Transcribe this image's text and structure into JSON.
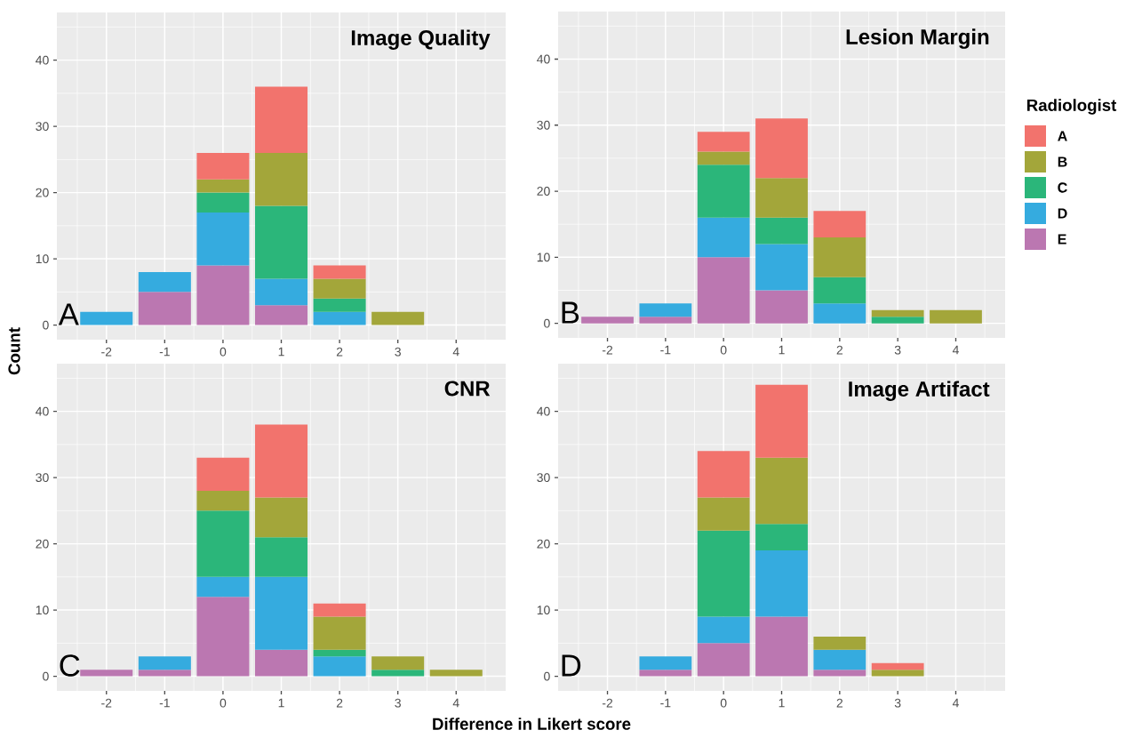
{
  "chart_data": [
    {
      "type": "bar",
      "stacked": true,
      "title": "Image Quality",
      "ylabel": "Count",
      "annotations": [
        "A"
      ],
      "grid": true,
      "x": [
        -2,
        -1,
        0,
        1,
        2,
        3
      ],
      "xlim": [
        -2.85,
        4.85
      ],
      "ylim": [
        -2.2,
        47.2
      ],
      "xticks": [
        -2,
        -1,
        0,
        1,
        2,
        3,
        4
      ],
      "yticks": [
        0,
        10,
        20,
        30,
        40
      ],
      "series": [
        {
          "color": "#bb77b1",
          "values": [
            null,
            5,
            9,
            3,
            null,
            null
          ]
        },
        {
          "color": "#35abdf",
          "values": [
            2,
            3,
            8,
            4,
            2,
            null
          ]
        },
        {
          "color": "#2bb67a",
          "values": [
            null,
            null,
            3,
            11,
            2,
            null
          ]
        },
        {
          "color": "#a3a63a",
          "values": [
            null,
            null,
            2,
            8,
            3,
            2
          ]
        },
        {
          "color": "#f2736d",
          "values": [
            null,
            null,
            4,
            10,
            2,
            null
          ]
        }
      ]
    },
    {
      "type": "bar",
      "stacked": true,
      "title": "Lesion Margin",
      "annotations": [
        "B"
      ],
      "grid": true,
      "legend": "right",
      "legend_title": "Radiologist",
      "x": [
        -2,
        -1,
        0,
        1,
        2,
        3,
        4
      ],
      "xlim": [
        -2.85,
        4.85
      ],
      "ylim": [
        -2.2,
        47.2
      ],
      "xticks": [
        -2,
        -1,
        0,
        1,
        2,
        3,
        4
      ],
      "yticks": [
        0,
        10,
        20,
        30,
        40
      ],
      "series": [
        {
          "name": "E",
          "color": "#bb77b1",
          "values": [
            1,
            1,
            10,
            5,
            null,
            null,
            null
          ]
        },
        {
          "name": "D",
          "color": "#35abdf",
          "values": [
            null,
            2,
            6,
            7,
            3,
            null,
            null
          ]
        },
        {
          "name": "C",
          "color": "#2bb67a",
          "values": [
            null,
            null,
            8,
            4,
            4,
            1,
            null
          ]
        },
        {
          "name": "B",
          "color": "#a3a63a",
          "values": [
            null,
            null,
            2,
            6,
            6,
            1,
            2
          ]
        },
        {
          "name": "A",
          "color": "#f2736d",
          "values": [
            null,
            null,
            3,
            9,
            4,
            null,
            null
          ]
        }
      ]
    },
    {
      "type": "bar",
      "stacked": true,
      "title": "CNR",
      "xlabel": "Difference in Likert score",
      "annotations": [
        "C"
      ],
      "grid": true,
      "x": [
        -2,
        -1,
        0,
        1,
        2,
        3,
        4
      ],
      "xlim": [
        -2.85,
        4.85
      ],
      "ylim": [
        -2.2,
        47.2
      ],
      "xticks": [
        -2,
        -1,
        0,
        1,
        2,
        3,
        4
      ],
      "yticks": [
        0,
        10,
        20,
        30,
        40
      ],
      "series": [
        {
          "color": "#bb77b1",
          "values": [
            1,
            1,
            12,
            4,
            null,
            null,
            null
          ]
        },
        {
          "color": "#35abdf",
          "values": [
            null,
            2,
            3,
            11,
            3,
            null,
            null
          ]
        },
        {
          "color": "#2bb67a",
          "values": [
            null,
            null,
            10,
            6,
            1,
            1,
            null
          ]
        },
        {
          "color": "#a3a63a",
          "values": [
            null,
            null,
            3,
            6,
            5,
            2,
            1
          ]
        },
        {
          "color": "#f2736d",
          "values": [
            null,
            null,
            5,
            11,
            2,
            null,
            null
          ]
        }
      ]
    },
    {
      "type": "bar",
      "stacked": true,
      "title": "Image Artifact",
      "annotations": [
        "D"
      ],
      "grid": true,
      "x": [
        -1,
        0,
        1,
        2,
        3
      ],
      "xlim": [
        -2.85,
        4.85
      ],
      "ylim": [
        -2.2,
        47.2
      ],
      "xticks": [
        -2,
        -1,
        0,
        1,
        2,
        3,
        4
      ],
      "yticks": [
        0,
        10,
        20,
        30,
        40
      ],
      "series": [
        {
          "color": "#bb77b1",
          "values": [
            1,
            5,
            9,
            1,
            null
          ]
        },
        {
          "color": "#35abdf",
          "values": [
            2,
            4,
            10,
            3,
            null
          ]
        },
        {
          "color": "#2bb67a",
          "values": [
            null,
            13,
            4,
            null,
            null
          ]
        },
        {
          "color": "#a3a63a",
          "values": [
            null,
            5,
            10,
            2,
            1
          ]
        },
        {
          "color": "#f2736d",
          "values": [
            null,
            7,
            11,
            null,
            1
          ]
        }
      ]
    }
  ]
}
